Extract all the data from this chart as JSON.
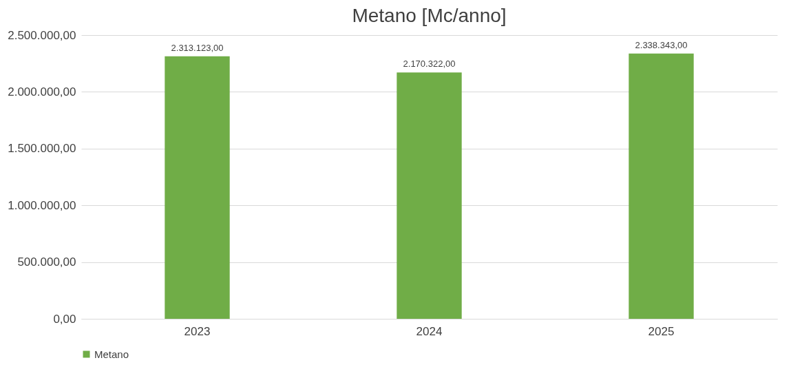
{
  "chart_data": {
    "type": "bar",
    "title": "Metano [Mc/anno]",
    "categories": [
      "2023",
      "2024",
      "2025"
    ],
    "series": [
      {
        "name": "Metano",
        "color": "#70ad47",
        "values": [
          2313123,
          2170322,
          2338343
        ]
      }
    ],
    "value_labels": [
      "2.313.123,00",
      "2.170.322,00",
      "2.338.343,00"
    ],
    "ylim": [
      0,
      2500000
    ],
    "yticks": [
      {
        "value": 0,
        "label": "0,00"
      },
      {
        "value": 500000,
        "label": "500.000,00"
      },
      {
        "value": 1000000,
        "label": "1.000.000,00"
      },
      {
        "value": 1500000,
        "label": "1.500.000,00"
      },
      {
        "value": 2000000,
        "label": "2.000.000,00"
      },
      {
        "value": 2500000,
        "label": "2.500.000,00"
      }
    ],
    "grid": "y",
    "legend": "bottom"
  }
}
